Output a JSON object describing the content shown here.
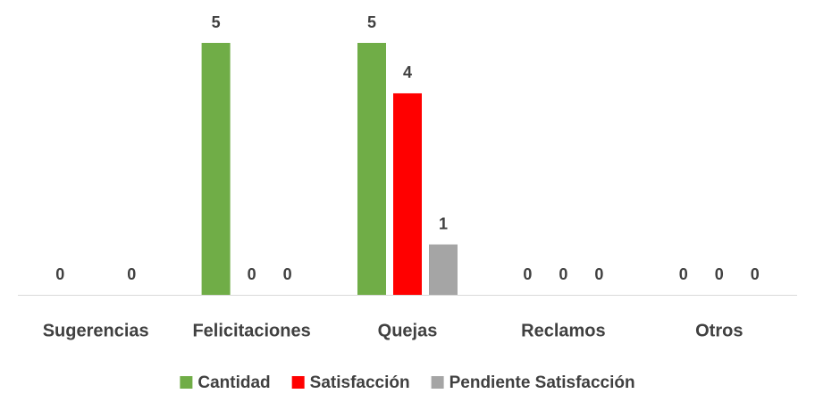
{
  "chart_data": {
    "type": "bar",
    "categories": [
      "Sugerencias",
      "Felicitaciones",
      "Quejas",
      "Reclamos",
      "Otros"
    ],
    "series": [
      {
        "name": "Cantidad",
        "color": "#70ad47",
        "values": [
          0,
          5,
          5,
          0,
          0
        ]
      },
      {
        "name": "Satisfacción",
        "color": "#ff0000",
        "values": [
          null,
          0,
          4,
          0,
          0
        ]
      },
      {
        "name": "Pendiente Satisfacción",
        "color": "#a5a5a5",
        "values": [
          0,
          0,
          1,
          0,
          0
        ]
      }
    ],
    "legend": "bottom"
  }
}
